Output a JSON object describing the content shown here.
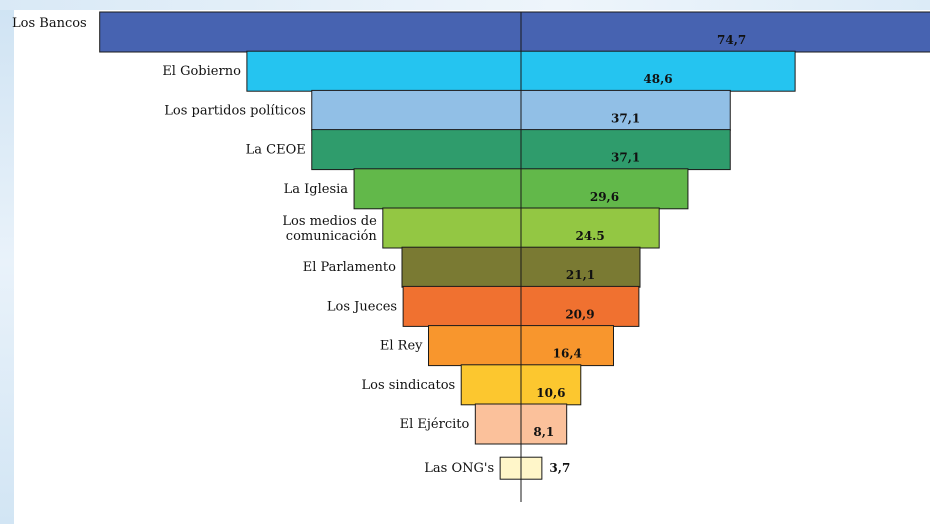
{
  "chart_data": {
    "type": "bar",
    "orientation": "funnel-horizontal",
    "title": "",
    "xlabel": "",
    "ylabel": "",
    "categories": [
      "Los Bancos",
      "El Gobierno",
      "Los partidos  políticos",
      "La CEOE",
      "La Iglesia",
      "Los medios de comunicación",
      "El Parlamento",
      "Los Jueces",
      "El Rey",
      "Los sindicatos",
      "El Ejército",
      "Las ONG's"
    ],
    "category_lines": [
      [
        "Los Bancos"
      ],
      [
        "El Gobierno"
      ],
      [
        "Los partidos  políticos"
      ],
      [
        "La CEOE"
      ],
      [
        "La Iglesia"
      ],
      [
        "Los medios de",
        "comunicación"
      ],
      [
        "El Parlamento"
      ],
      [
        "Los Jueces"
      ],
      [
        "El Rey"
      ],
      [
        "Los sindicatos"
      ],
      [
        "El Ejército"
      ],
      [
        "Las ONG's"
      ]
    ],
    "values": [
      74.7,
      48.6,
      37.1,
      37.1,
      29.6,
      24.5,
      21.1,
      20.9,
      16.4,
      10.6,
      8.1,
      3.7
    ],
    "value_labels": [
      "74,7",
      "48,6",
      "37,1",
      "37,1",
      "29,6",
      "24.5",
      "21,1",
      "20,9",
      "16,4",
      "10,6",
      "8,1",
      "3,7"
    ],
    "colors": [
      "#4763b1",
      "#25c4f0",
      "#91bfe6",
      "#2f9c6c",
      "#62b84a",
      "#93c743",
      "#7a7a33",
      "#f07130",
      "#f8962d",
      "#fcc72f",
      "#fbc19b",
      "#fff6c9"
    ],
    "xlim": [
      0,
      75
    ],
    "grid": false,
    "legend": "none"
  }
}
